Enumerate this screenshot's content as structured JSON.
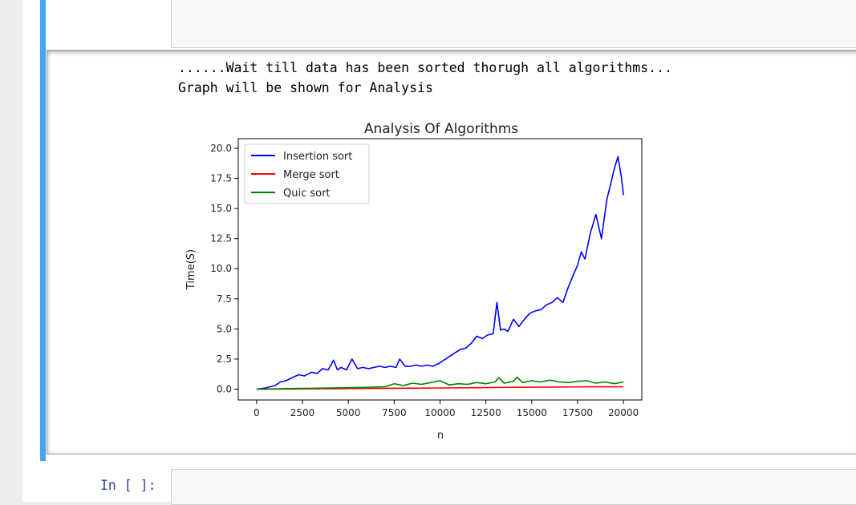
{
  "output": {
    "line1": "......Wait till data has been sorted thorugh all algorithms...",
    "line2": "Graph will be shown for Analysis"
  },
  "next_cell": {
    "prompt": "In [ ]:"
  },
  "chart_data": {
    "type": "line",
    "title": "Analysis Of Algorithms",
    "xlabel": "n",
    "ylabel": "Time(S)",
    "xlim": [
      -1000,
      21000
    ],
    "ylim": [
      -0.9,
      20.8
    ],
    "xticks": [
      "0",
      "2500",
      "5000",
      "7500",
      "10000",
      "12500",
      "15000",
      "17500",
      "20000"
    ],
    "xtick_values": [
      0,
      2500,
      5000,
      7500,
      10000,
      12500,
      15000,
      17500,
      20000
    ],
    "yticks": [
      "0.0",
      "2.5",
      "5.0",
      "7.5",
      "10.0",
      "12.5",
      "15.0",
      "17.5",
      "20.0"
    ],
    "ytick_values": [
      0,
      2.5,
      5,
      7.5,
      10,
      12.5,
      15,
      17.5,
      20
    ],
    "grid": false,
    "legend_position": "top-left",
    "series": [
      {
        "name": "Insertion sort",
        "color": "#0000ff",
        "x": [
          0,
          500,
          1000,
          1300,
          1600,
          2000,
          2300,
          2600,
          3000,
          3300,
          3600,
          3900,
          4200,
          4400,
          4600,
          4900,
          5200,
          5500,
          5800,
          6100,
          6400,
          6700,
          7000,
          7300,
          7600,
          7800,
          8100,
          8400,
          8700,
          9000,
          9300,
          9600,
          9900,
          10200,
          10500,
          10800,
          11100,
          11400,
          11700,
          12000,
          12300,
          12600,
          12900,
          13100,
          13300,
          13500,
          13700,
          14000,
          14300,
          14600,
          14900,
          15200,
          15500,
          15800,
          16100,
          16400,
          16700,
          17000,
          17300,
          17500,
          17700,
          17900,
          18200,
          18500,
          18800,
          19100,
          19300,
          19500,
          19700,
          19900,
          20000
        ],
        "y": [
          0,
          0.1,
          0.3,
          0.6,
          0.7,
          1.0,
          1.2,
          1.1,
          1.4,
          1.3,
          1.7,
          1.6,
          2.4,
          1.6,
          1.8,
          1.6,
          2.5,
          1.7,
          1.8,
          1.7,
          1.8,
          1.9,
          1.8,
          1.9,
          1.8,
          2.5,
          1.9,
          1.9,
          2.0,
          1.9,
          2.0,
          1.9,
          2.1,
          2.4,
          2.7,
          3.0,
          3.3,
          3.4,
          3.8,
          4.4,
          4.2,
          4.5,
          4.6,
          7.2,
          4.9,
          5.0,
          4.8,
          5.8,
          5.2,
          5.8,
          6.3,
          6.5,
          6.6,
          7.0,
          7.2,
          7.6,
          7.2,
          8.5,
          9.6,
          10.3,
          11.4,
          10.8,
          13.0,
          14.5,
          12.5,
          15.8,
          17.0,
          18.3,
          19.3,
          17.5,
          16.1
        ]
      },
      {
        "name": "Merge sort",
        "color": "#ff0000",
        "x": [
          0,
          2000,
          4000,
          6000,
          8000,
          10000,
          12000,
          14000,
          16000,
          18000,
          20000
        ],
        "y": [
          0,
          0.02,
          0.04,
          0.06,
          0.08,
          0.1,
          0.12,
          0.15,
          0.17,
          0.19,
          0.2
        ]
      },
      {
        "name": "Quic sort",
        "color": "#008000",
        "x": [
          0,
          1000,
          2000,
          3000,
          4000,
          5000,
          6000,
          7000,
          7500,
          8000,
          8500,
          9000,
          9500,
          10000,
          10500,
          11000,
          11500,
          12000,
          12500,
          13000,
          13200,
          13500,
          14000,
          14200,
          14500,
          15000,
          15500,
          16000,
          16500,
          17000,
          17500,
          18000,
          18500,
          19000,
          19500,
          20000
        ],
        "y": [
          0,
          0.02,
          0.05,
          0.07,
          0.1,
          0.12,
          0.15,
          0.2,
          0.45,
          0.3,
          0.5,
          0.4,
          0.55,
          0.7,
          0.35,
          0.45,
          0.4,
          0.55,
          0.45,
          0.6,
          0.95,
          0.5,
          0.65,
          1.0,
          0.55,
          0.7,
          0.6,
          0.75,
          0.6,
          0.55,
          0.65,
          0.7,
          0.5,
          0.6,
          0.45,
          0.6
        ]
      }
    ]
  }
}
